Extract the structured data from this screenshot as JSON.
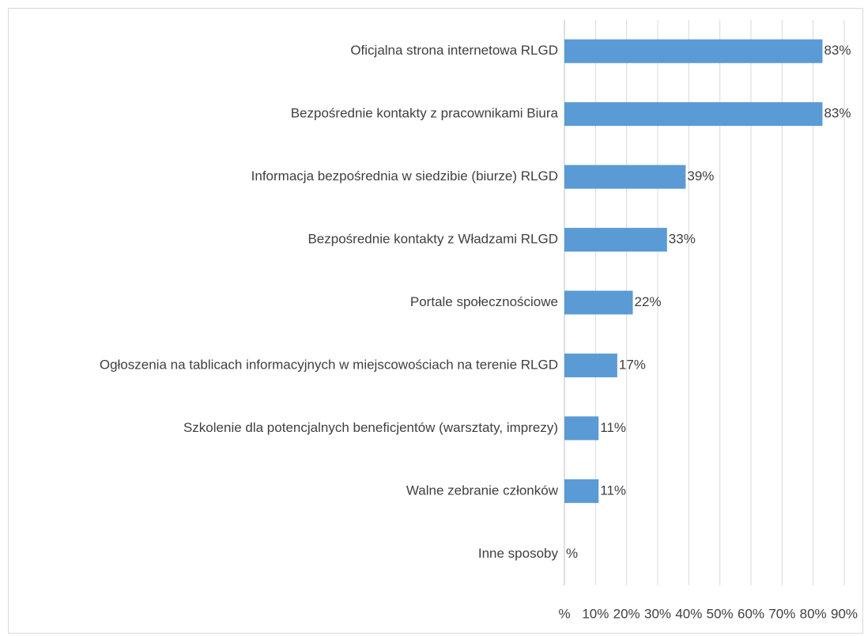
{
  "chart_data": {
    "type": "bar",
    "orientation": "horizontal",
    "categories": [
      "Oficjalna strona internetowa RLGD",
      "Bezpośrednie kontakty z pracownikami Biura",
      "Informacja bezpośrednia w siedzibie (biurze) RLGD",
      "Bezpośrednie kontakty z Władzami RLGD",
      "Portale społecznościowe",
      "Ogłoszenia na tablicach informacyjnych w miejscowościach na terenie RLGD",
      "Szkolenie dla potencjalnych beneficjentów (warsztaty, imprezy)",
      "Walne zebranie członków",
      "Inne sposoby"
    ],
    "values": [
      83,
      83,
      39,
      33,
      22,
      17,
      11,
      11,
      0
    ],
    "value_labels": [
      "83%",
      "83%",
      "39%",
      "33%",
      "22%",
      "17%",
      "11%",
      "11%",
      "%"
    ],
    "color": "#5b9bd5",
    "xlim": [
      0,
      90
    ],
    "xticks": [
      {
        "value": 0,
        "label": "%"
      },
      {
        "value": 10,
        "label": "10%"
      },
      {
        "value": 20,
        "label": "20%"
      },
      {
        "value": 30,
        "label": "30%"
      },
      {
        "value": 40,
        "label": "40%"
      },
      {
        "value": 50,
        "label": "50%"
      },
      {
        "value": 60,
        "label": "60%"
      },
      {
        "value": 70,
        "label": "70%"
      },
      {
        "value": 80,
        "label": "80%"
      },
      {
        "value": 90,
        "label": "90%"
      }
    ],
    "grid": true
  }
}
